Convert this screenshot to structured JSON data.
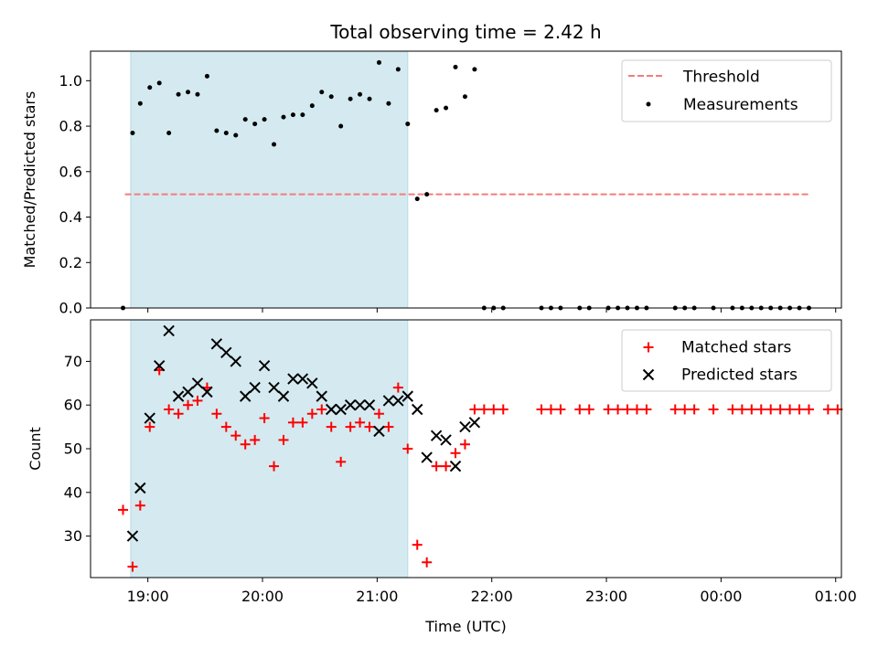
{
  "colors": {
    "shade": "#d4eaf0",
    "threshold": "#f47c7c",
    "measurements": "#000000",
    "matched": "#ff0000",
    "predicted": "#000000"
  },
  "chart_data": [
    {
      "type": "scatter",
      "title": "Total observing time = 2.42 h",
      "xlabel": "",
      "ylabel": "Matched/Predicted stars",
      "x_axis_type": "time (hours since 19:00 UTC)",
      "xlim": [
        -0.5,
        6.05
      ],
      "ylim": [
        0,
        1.13
      ],
      "yticks": [
        0.0,
        0.2,
        0.4,
        0.6,
        0.8,
        1.0
      ],
      "ytick_labels": [
        "0.0",
        "0.2",
        "0.4",
        "0.6",
        "0.8",
        "1.0"
      ],
      "shaded_interval": [
        "18:51",
        "21:16"
      ],
      "threshold": {
        "name": "Threshold",
        "y": 0.5,
        "x_range": [
          "18:48",
          "00:47"
        ],
        "style": "dashed"
      },
      "legend": {
        "position": "top-right",
        "entries": [
          "Threshold",
          "Measurements"
        ]
      },
      "series": [
        {
          "name": "Measurements",
          "marker": "dot",
          "points": [
            [
              "18:47",
              0.0
            ],
            [
              "18:52",
              0.77
            ],
            [
              "18:56",
              0.9
            ],
            [
              "19:01",
              0.97
            ],
            [
              "19:06",
              0.99
            ],
            [
              "19:11",
              0.77
            ],
            [
              "19:16",
              0.94
            ],
            [
              "19:21",
              0.95
            ],
            [
              "19:26",
              0.94
            ],
            [
              "19:31",
              1.02
            ],
            [
              "19:36",
              0.78
            ],
            [
              "19:41",
              0.77
            ],
            [
              "19:46",
              0.76
            ],
            [
              "19:51",
              0.83
            ],
            [
              "19:56",
              0.81
            ],
            [
              "20:01",
              0.83
            ],
            [
              "20:06",
              0.72
            ],
            [
              "20:11",
              0.84
            ],
            [
              "20:16",
              0.85
            ],
            [
              "20:21",
              0.85
            ],
            [
              "20:26",
              0.89
            ],
            [
              "20:31",
              0.95
            ],
            [
              "20:36",
              0.93
            ],
            [
              "20:41",
              0.8
            ],
            [
              "20:46",
              0.92
            ],
            [
              "20:51",
              0.94
            ],
            [
              "20:56",
              0.92
            ],
            [
              "21:01",
              1.08
            ],
            [
              "21:06",
              0.9
            ],
            [
              "21:11",
              1.05
            ],
            [
              "21:16",
              0.81
            ],
            [
              "21:21",
              0.48
            ],
            [
              "21:26",
              0.5
            ],
            [
              "21:31",
              0.87
            ],
            [
              "21:36",
              0.88
            ],
            [
              "21:41",
              1.06
            ],
            [
              "21:46",
              0.93
            ],
            [
              "21:51",
              1.05
            ],
            [
              "21:56",
              0.0
            ],
            [
              "22:01",
              0.0
            ],
            [
              "22:06",
              0.0
            ],
            [
              "22:26",
              0.0
            ],
            [
              "22:31",
              0.0
            ],
            [
              "22:36",
              0.0
            ],
            [
              "22:46",
              0.0
            ],
            [
              "22:51",
              0.0
            ],
            [
              "23:01",
              0.0
            ],
            [
              "23:06",
              0.0
            ],
            [
              "23:11",
              0.0
            ],
            [
              "23:16",
              0.0
            ],
            [
              "23:21",
              0.0
            ],
            [
              "23:36",
              0.0
            ],
            [
              "23:41",
              0.0
            ],
            [
              "23:46",
              0.0
            ],
            [
              "23:56",
              0.0
            ],
            [
              "00:06",
              0.0
            ],
            [
              "00:11",
              0.0
            ],
            [
              "00:16",
              0.0
            ],
            [
              "00:21",
              0.0
            ],
            [
              "00:26",
              0.0
            ],
            [
              "00:31",
              0.0
            ],
            [
              "00:36",
              0.0
            ],
            [
              "00:41",
              0.0
            ],
            [
              "00:46",
              0.0
            ]
          ]
        }
      ]
    },
    {
      "type": "scatter",
      "title": "",
      "xlabel": "Time (UTC)",
      "ylabel": "Count",
      "x_axis_type": "time (hours since 19:00 UTC)",
      "xlim": [
        -0.5,
        6.05
      ],
      "ylim": [
        20.5,
        79.5
      ],
      "xticks": [
        "19:00",
        "20:00",
        "21:00",
        "22:00",
        "23:00",
        "00:00",
        "01:00"
      ],
      "yticks": [
        30,
        40,
        50,
        60,
        70
      ],
      "ytick_labels": [
        "30",
        "40",
        "50",
        "60",
        "70"
      ],
      "shaded_interval": [
        "18:51",
        "21:16"
      ],
      "legend": {
        "position": "top-right",
        "entries": [
          "Matched stars",
          "Predicted stars"
        ]
      },
      "series": [
        {
          "name": "Matched stars",
          "marker": "plus",
          "points": [
            [
              "18:47",
              36
            ],
            [
              "18:52",
              23
            ],
            [
              "18:56",
              37
            ],
            [
              "19:01",
              55
            ],
            [
              "19:06",
              68
            ],
            [
              "19:11",
              59
            ],
            [
              "19:16",
              58
            ],
            [
              "19:21",
              60
            ],
            [
              "19:26",
              61
            ],
            [
              "19:31",
              64
            ],
            [
              "19:36",
              58
            ],
            [
              "19:41",
              55
            ],
            [
              "19:46",
              53
            ],
            [
              "19:51",
              51
            ],
            [
              "19:56",
              52
            ],
            [
              "20:01",
              57
            ],
            [
              "20:06",
              46
            ],
            [
              "20:11",
              52
            ],
            [
              "20:16",
              56
            ],
            [
              "20:21",
              56
            ],
            [
              "20:26",
              58
            ],
            [
              "20:31",
              59
            ],
            [
              "20:36",
              55
            ],
            [
              "20:41",
              47
            ],
            [
              "20:46",
              55
            ],
            [
              "20:51",
              56
            ],
            [
              "20:56",
              55
            ],
            [
              "21:01",
              58
            ],
            [
              "21:06",
              55
            ],
            [
              "21:11",
              64
            ],
            [
              "21:16",
              50
            ],
            [
              "21:21",
              28
            ],
            [
              "21:26",
              24
            ],
            [
              "21:31",
              46
            ],
            [
              "21:36",
              46
            ],
            [
              "21:41",
              49
            ],
            [
              "21:46",
              51
            ],
            [
              "21:51",
              59
            ],
            [
              "21:56",
              59
            ],
            [
              "22:01",
              59
            ],
            [
              "22:06",
              59
            ],
            [
              "22:26",
              59
            ],
            [
              "22:31",
              59
            ],
            [
              "22:36",
              59
            ],
            [
              "22:46",
              59
            ],
            [
              "22:51",
              59
            ],
            [
              "23:01",
              59
            ],
            [
              "23:06",
              59
            ],
            [
              "23:11",
              59
            ],
            [
              "23:16",
              59
            ],
            [
              "23:21",
              59
            ],
            [
              "23:36",
              59
            ],
            [
              "23:41",
              59
            ],
            [
              "23:46",
              59
            ],
            [
              "23:56",
              59
            ],
            [
              "00:06",
              59
            ],
            [
              "00:11",
              59
            ],
            [
              "00:16",
              59
            ],
            [
              "00:21",
              59
            ],
            [
              "00:26",
              59
            ],
            [
              "00:31",
              59
            ],
            [
              "00:36",
              59
            ],
            [
              "00:41",
              59
            ],
            [
              "00:46",
              59
            ],
            [
              "00:56",
              59
            ],
            [
              "01:01",
              59
            ]
          ]
        },
        {
          "name": "Predicted stars",
          "marker": "x",
          "points": [
            [
              "18:52",
              30
            ],
            [
              "18:56",
              41
            ],
            [
              "19:01",
              57
            ],
            [
              "19:06",
              69
            ],
            [
              "19:11",
              77
            ],
            [
              "19:16",
              62
            ],
            [
              "19:21",
              63
            ],
            [
              "19:26",
              65
            ],
            [
              "19:31",
              63
            ],
            [
              "19:36",
              74
            ],
            [
              "19:41",
              72
            ],
            [
              "19:46",
              70
            ],
            [
              "19:51",
              62
            ],
            [
              "19:56",
              64
            ],
            [
              "20:01",
              69
            ],
            [
              "20:06",
              64
            ],
            [
              "20:11",
              62
            ],
            [
              "20:16",
              66
            ],
            [
              "20:21",
              66
            ],
            [
              "20:26",
              65
            ],
            [
              "20:31",
              62
            ],
            [
              "20:36",
              59
            ],
            [
              "20:41",
              59
            ],
            [
              "20:46",
              60
            ],
            [
              "20:51",
              60
            ],
            [
              "20:56",
              60
            ],
            [
              "21:01",
              54
            ],
            [
              "21:06",
              61
            ],
            [
              "21:11",
              61
            ],
            [
              "21:16",
              62
            ],
            [
              "21:21",
              59
            ],
            [
              "21:26",
              48
            ],
            [
              "21:31",
              53
            ],
            [
              "21:36",
              52
            ],
            [
              "21:41",
              46
            ],
            [
              "21:46",
              55
            ],
            [
              "21:51",
              56
            ]
          ]
        }
      ]
    }
  ]
}
